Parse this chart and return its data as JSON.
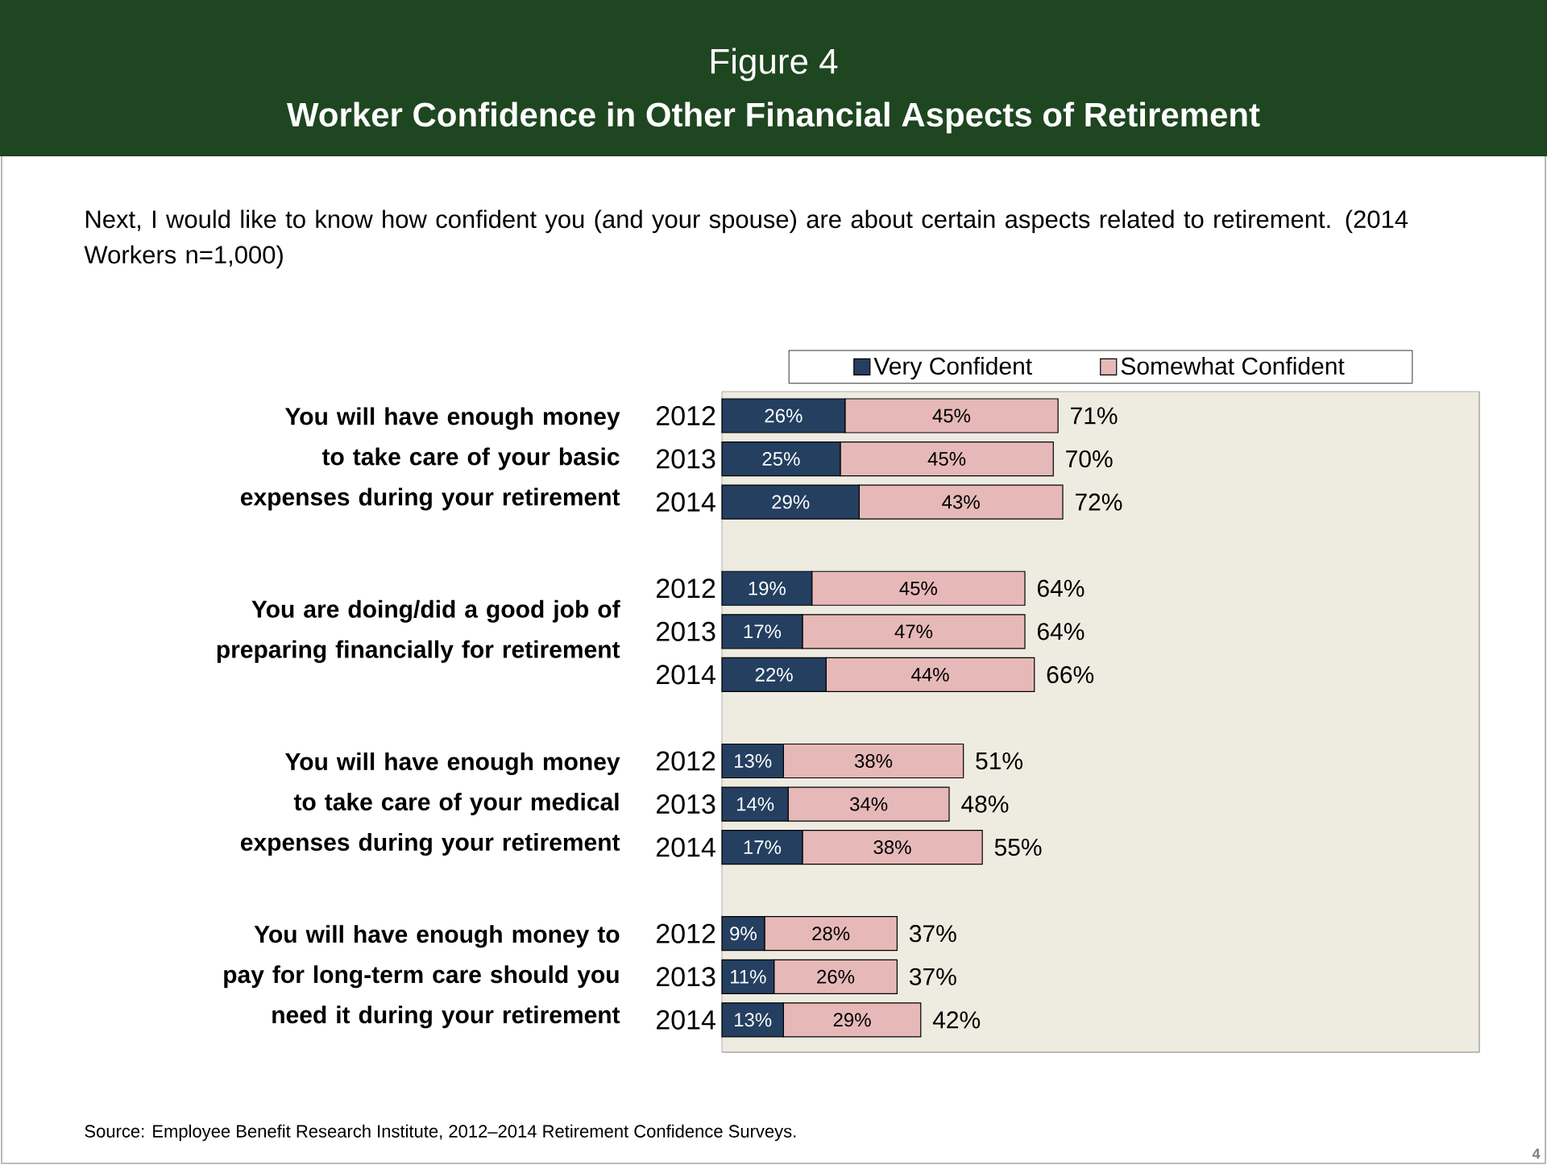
{
  "chart_data": {
    "type": "bar",
    "orientation": "horizontal",
    "stacked": true,
    "title": "Figure 4",
    "subtitle": "Worker Confidence in Other Financial Aspects of Retirement",
    "categories": [
      "2012",
      "2013",
      "2014",
      null,
      "2012",
      "2013",
      "2014",
      null,
      "2012",
      "2013",
      "2014",
      null,
      "2012",
      "2013",
      "2014"
    ],
    "series": [
      {
        "name": "Very Confident",
        "color": "#243f60",
        "values": [
          26,
          25,
          29,
          null,
          19,
          17,
          22,
          null,
          13,
          14,
          17,
          null,
          9,
          11,
          13
        ],
        "value_labels": [
          "26%",
          "25%",
          "29%",
          null,
          "19%",
          "17%",
          "22%",
          null,
          "13%",
          "14%",
          "17%",
          null,
          "9%",
          "11%",
          "13%"
        ]
      },
      {
        "name": "Somewhat Confident",
        "color": "#e6b9b8",
        "values": [
          45,
          45,
          43,
          null,
          45,
          47,
          44,
          null,
          38,
          34,
          38,
          null,
          28,
          26,
          29
        ],
        "value_labels": [
          "45%",
          "45%",
          "43%",
          null,
          "45%",
          "47%",
          "44%",
          null,
          "38%",
          "34%",
          "38%",
          null,
          "28%",
          "26%",
          "29%"
        ]
      }
    ],
    "totals": [
      "71%",
      "70%",
      "72%",
      null,
      "64%",
      "64%",
      "66%",
      null,
      "51%",
      "48%",
      "55%",
      null,
      "37%",
      "37%",
      "42%"
    ],
    "xlim": [
      0,
      160
    ],
    "tick_labels": "y",
    "legend": "top",
    "annotations": [
      "You will have enough money to take care of your basic expenses during your retirement",
      "You are doing/did a good job of preparing financially for retirement",
      "You will have enough money to take care of your medical expenses during your retirement",
      "You will have enough money to pay for long-term care should you need it during your retirement",
      "Next, I would like to know how confident you (and your spouse) are about certain aspects related to retirement. (2014 Workers n=1,000)",
      "Source:  Employee Benefit Research Institute, 2012–2014 Retirement Confidence Surveys.",
      "4"
    ]
  }
}
